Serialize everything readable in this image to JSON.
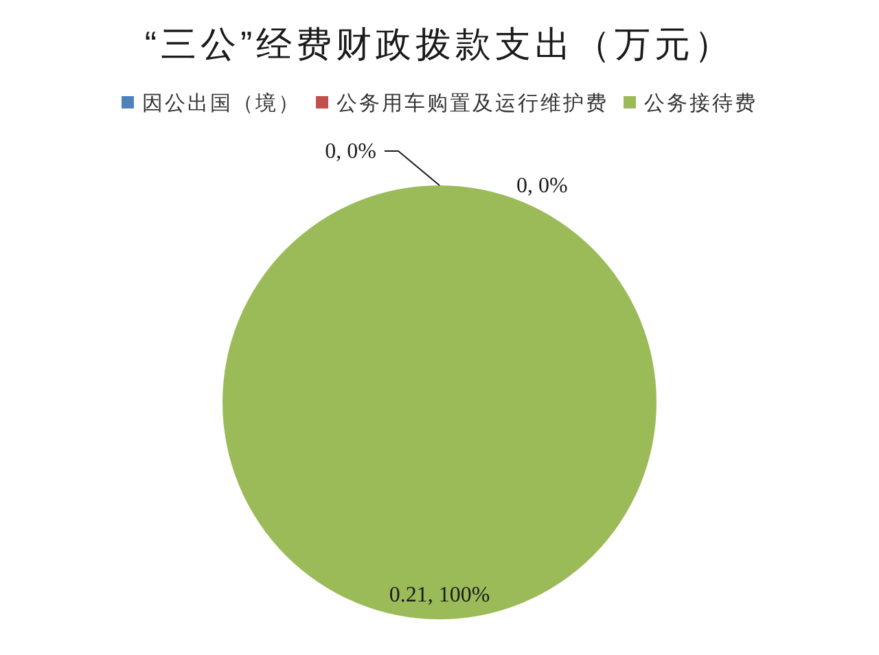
{
  "chart_data": {
    "type": "pie",
    "title": "“三公”经费财政拨款支出（万元）",
    "categories": [
      "因公出国（境）",
      "公务用车购置及运行维护费",
      "公务接待费"
    ],
    "values": [
      0,
      0,
      0.21
    ],
    "colors": [
      "#4f81bd",
      "#c0504d",
      "#9bbb59"
    ],
    "value_labels": [
      "0, 0%",
      "0, 0%",
      "0.21, 100%"
    ],
    "legend": "top"
  }
}
